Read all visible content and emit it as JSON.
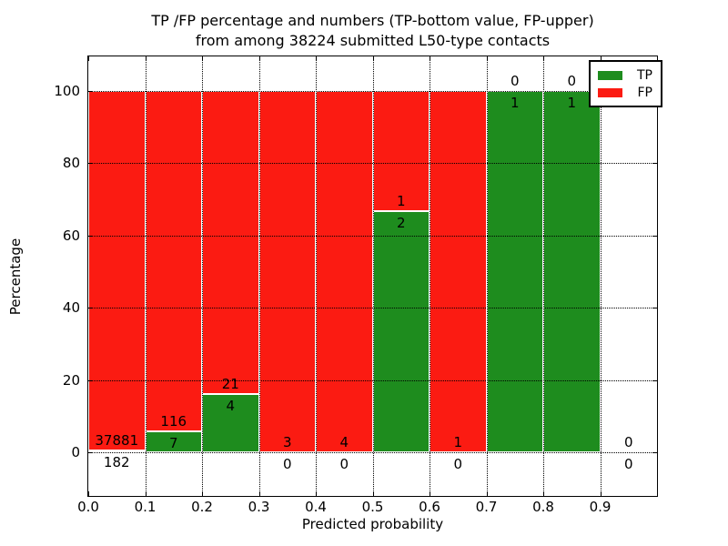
{
  "title": {
    "line1": "TP /FP percentage and numbers (TP-bottom value, FP-upper)",
    "line2": "from among 38224 submitted L50-type contacts"
  },
  "axes": {
    "xlabel": "Predicted probability",
    "ylabel": "Percentage"
  },
  "legend": {
    "items": [
      {
        "label": "TP",
        "color": "#1e8c1e"
      },
      {
        "label": "FP",
        "color": "#fb1b12"
      }
    ]
  },
  "chart_data": {
    "type": "bar",
    "stacked": true,
    "title": "TP /FP percentage and numbers (TP-bottom value, FP-upper) from among 38224 submitted L50-type contacts",
    "total_submitted_contacts": 38224,
    "xlabel": "Predicted probability",
    "ylabel": "Percentage",
    "xlim": [
      0.0,
      1.0
    ],
    "ylim": [
      -12.1,
      109.6
    ],
    "x_ticks": [
      0.0,
      0.1,
      0.2,
      0.3,
      0.4,
      0.5,
      0.6,
      0.7,
      0.8,
      0.9
    ],
    "y_ticks": [
      0,
      20,
      40,
      60,
      80,
      100
    ],
    "grid": "dotted black, drawn above bars",
    "legend_position": "upper right",
    "colors": {
      "tp": "#1e8c1e",
      "fp": "#fb1b12",
      "bar_edge": "#ffffff"
    },
    "bins": [
      {
        "x_start": 0.0,
        "x_end": 0.1,
        "tp": 182,
        "fp": 37881,
        "tp_pct": 0.478,
        "fp_pct": 99.522
      },
      {
        "x_start": 0.1,
        "x_end": 0.2,
        "tp": 7,
        "fp": 116,
        "tp_pct": 5.691,
        "fp_pct": 94.309
      },
      {
        "x_start": 0.2,
        "x_end": 0.3,
        "tp": 4,
        "fp": 21,
        "tp_pct": 16.0,
        "fp_pct": 84.0
      },
      {
        "x_start": 0.3,
        "x_end": 0.4,
        "tp": 0,
        "fp": 3,
        "tp_pct": 0,
        "fp_pct": 100
      },
      {
        "x_start": 0.4,
        "x_end": 0.5,
        "tp": 0,
        "fp": 4,
        "tp_pct": 0,
        "fp_pct": 100
      },
      {
        "x_start": 0.5,
        "x_end": 0.6,
        "tp": 2,
        "fp": 1,
        "tp_pct": 66.667,
        "fp_pct": 33.333
      },
      {
        "x_start": 0.6,
        "x_end": 0.7,
        "tp": 0,
        "fp": 1,
        "tp_pct": 0,
        "fp_pct": 100
      },
      {
        "x_start": 0.7,
        "x_end": 0.8,
        "tp": 1,
        "fp": 0,
        "tp_pct": 100,
        "fp_pct": 0
      },
      {
        "x_start": 0.8,
        "x_end": 0.9,
        "tp": 1,
        "fp": 0,
        "tp_pct": 100,
        "fp_pct": 0
      },
      {
        "x_start": 0.9,
        "x_end": 1.0,
        "tp": 0,
        "fp": 0,
        "tp_pct": 0,
        "fp_pct": 0
      }
    ]
  }
}
